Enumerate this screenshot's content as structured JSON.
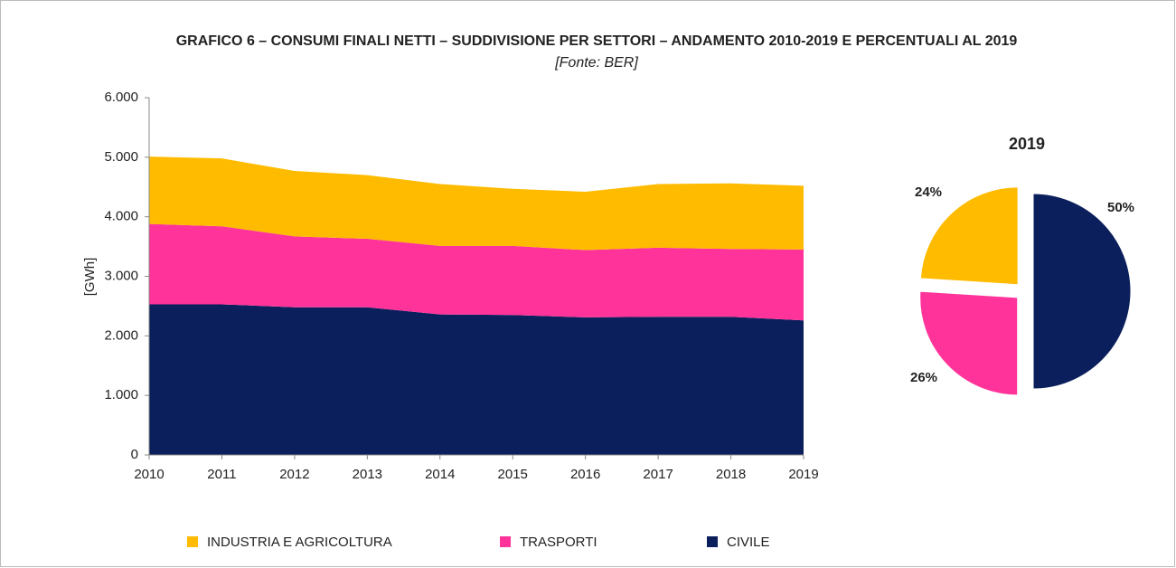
{
  "chart_data": [
    {
      "type": "stacked_area",
      "title": "GRAFICO 6 – CONSUMI FINALI NETTI – SUDDIVISIONE PER SETTORI – ANDAMENTO 2010-2019 E PERCENTUALI AL 2019",
      "subtitle": "[Fonte: BER]",
      "y_label": "[GWh]",
      "categories": [
        "2010",
        "2011",
        "2012",
        "2013",
        "2014",
        "2015",
        "2016",
        "2017",
        "2018",
        "2019"
      ],
      "series": [
        {
          "name": "CIVILE",
          "color": "#0b1f5c",
          "values": [
            2530,
            2530,
            2480,
            2480,
            2360,
            2350,
            2310,
            2320,
            2320,
            2260
          ]
        },
        {
          "name": "TRASPORTI",
          "color": "#ff3399",
          "values": [
            1350,
            1310,
            1190,
            1150,
            1150,
            1160,
            1130,
            1160,
            1140,
            1190
          ]
        },
        {
          "name": "INDUSTRIA E AGRICOLTURA",
          "color": "#ffbb00",
          "values": [
            1130,
            1140,
            1100,
            1070,
            1040,
            960,
            980,
            1070,
            1100,
            1070
          ]
        }
      ],
      "ylim": [
        0,
        6000
      ],
      "yticks": [
        0,
        {
          "value": 1000,
          "label": "1.000"
        },
        {
          "value": 2000,
          "label": "2.000"
        },
        {
          "value": 3000,
          "label": "3.000"
        },
        {
          "value": 4000,
          "label": "4.000"
        },
        {
          "value": 5000,
          "label": "5.000"
        },
        {
          "value": 6000,
          "label": "6.000"
        }
      ],
      "legend": "bottom"
    },
    {
      "type": "pie",
      "title": "2019",
      "values": [
        50,
        26,
        24
      ],
      "value_labels": [
        "50%",
        "26%",
        "24%"
      ],
      "colors": [
        "#0b1f5c",
        "#ff3399",
        "#ffbb00"
      ],
      "exploded": true
    }
  ]
}
